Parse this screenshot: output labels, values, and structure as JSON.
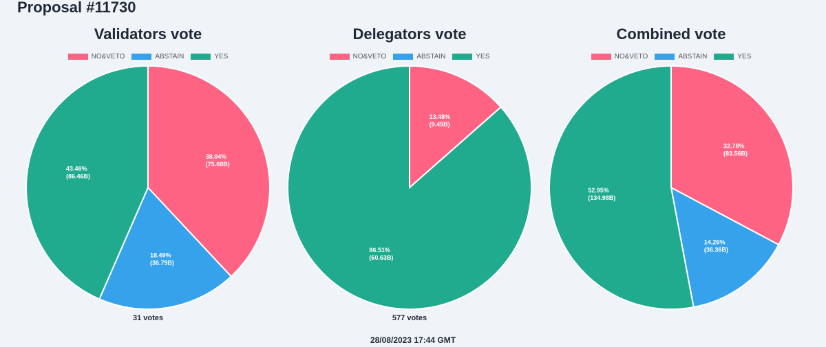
{
  "page": {
    "title": "Proposal #11730",
    "timestamp": "28/08/2023 17:44 GMT"
  },
  "colors": {
    "no_veto": "#ff6384",
    "abstain": "#36a2eb",
    "yes": "#20ab8e"
  },
  "chart_data": [
    {
      "type": "pie",
      "title": "Validators vote",
      "legend": [
        "NO&VETO",
        "ABSTAIN",
        "YES"
      ],
      "legend_position": "top",
      "slices": [
        {
          "label": "NO&VETO",
          "percent": 38.04,
          "percent_text": "38.04%",
          "amount_text": "(75.68B)",
          "color": "#ff6384"
        },
        {
          "label": "ABSTAIN",
          "percent": 18.49,
          "percent_text": "18.49%",
          "amount_text": "(36.79B)",
          "color": "#36a2eb"
        },
        {
          "label": "YES",
          "percent": 43.46,
          "percent_text": "43.46%",
          "amount_text": "(86.46B)",
          "color": "#20ab8e"
        }
      ],
      "votes_label": "31 votes"
    },
    {
      "type": "pie",
      "title": "Delegators vote",
      "legend": [
        "NO&VETO",
        "ABSTAIN",
        "YES"
      ],
      "legend_position": "top",
      "slices": [
        {
          "label": "NO&VETO",
          "percent": 13.48,
          "percent_text": "13.48%",
          "amount_text": "(9.45B)",
          "color": "#ff6384"
        },
        {
          "label": "ABSTAIN",
          "percent": 0.01,
          "percent_text": "",
          "amount_text": "",
          "color": "#36a2eb"
        },
        {
          "label": "YES",
          "percent": 86.51,
          "percent_text": "86.51%",
          "amount_text": "(60.63B)",
          "color": "#20ab8e"
        }
      ],
      "votes_label": "577 votes"
    },
    {
      "type": "pie",
      "title": "Combined vote",
      "legend": [
        "NO&VETO",
        "ABSTAIN",
        "YES"
      ],
      "legend_position": "top",
      "slices": [
        {
          "label": "NO&VETO",
          "percent": 32.78,
          "percent_text": "32.78%",
          "amount_text": "(83.56B)",
          "color": "#ff6384"
        },
        {
          "label": "ABSTAIN",
          "percent": 14.26,
          "percent_text": "14.26%",
          "amount_text": "(36.36B)",
          "color": "#36a2eb"
        },
        {
          "label": "YES",
          "percent": 52.95,
          "percent_text": "52.95%",
          "amount_text": "(134.98B)",
          "color": "#20ab8e"
        }
      ],
      "votes_label": ""
    }
  ]
}
